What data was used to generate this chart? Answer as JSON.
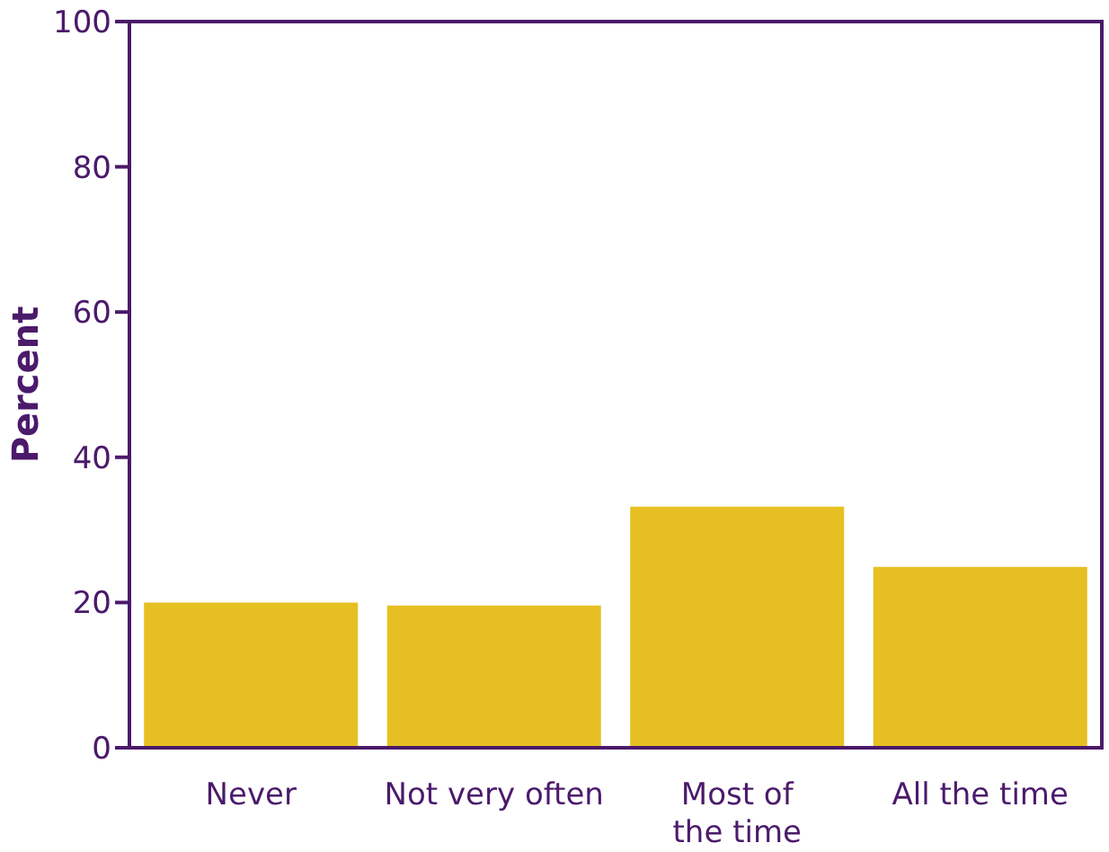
{
  "chart_data": {
    "type": "bar",
    "ylabel": "Percent",
    "categories": [
      "Never",
      "Not very often",
      "Most of the time",
      "All the time"
    ],
    "values": [
      20,
      19.6,
      33.2,
      24.9
    ],
    "color": "#e6c022",
    "ylim": [
      0,
      100
    ],
    "yticks": [
      0,
      20,
      40,
      60,
      80,
      100
    ],
    "grid": false
  }
}
